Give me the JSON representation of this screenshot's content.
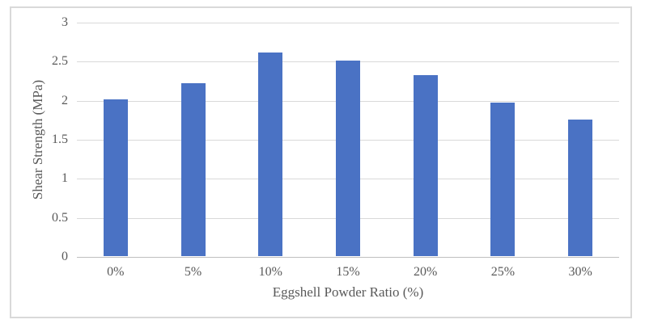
{
  "chart_data": {
    "type": "bar",
    "title": "",
    "categories": [
      "0%",
      "5%",
      "10%",
      "15%",
      "20%",
      "25%",
      "30%"
    ],
    "values": [
      2.01,
      2.21,
      2.61,
      2.5,
      2.32,
      1.97,
      1.75
    ],
    "xlabel": "Eggshell Powder Ratio (%)",
    "ylabel": "Shear Strength (MPa)",
    "ylim": [
      0,
      3
    ],
    "ytick_step": 0.5,
    "yticks": [
      "0",
      "0.5",
      "1",
      "1.5",
      "2",
      "2.5",
      "3"
    ],
    "grid": true,
    "legend": "none",
    "bar_color": "#4a72c4",
    "gridline_color": "#d9d9d9",
    "axis_line_color": "#bfbfbf",
    "text_color": "#595959",
    "frame_border_color": "#d9d9d9"
  }
}
